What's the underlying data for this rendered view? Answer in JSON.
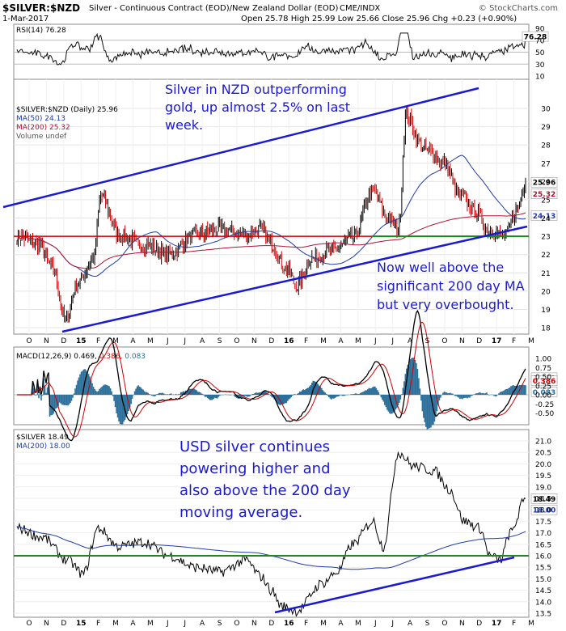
{
  "header": {
    "symbol": "$SILVER:$NZD",
    "description": "Silver - Continuous Contract (EOD)/New Zealand Dollar (EOD)",
    "exchange": "CME/INDX",
    "watermark": "© StockCharts.com",
    "date": "1-Mar-2017",
    "ohlc": "Open 25.78  High 25.99  Low 25.66  Close 25.96  Chg +0.23 (+0.90%)"
  },
  "rsi": {
    "label": "RSI(14) 76.28",
    "ticks": [
      "90",
      "70",
      "50",
      "30",
      "10"
    ],
    "current": "76.28"
  },
  "price": {
    "legend_symbol": "$SILVER:$NZD (Daily) 25.96",
    "legend_ma50": "MA(50) 24.13",
    "legend_ma200": "MA(200) 25.32",
    "legend_volume": "Volume undef",
    "ticks": [
      "30",
      "29",
      "28",
      "27",
      "26",
      "25",
      "24",
      "23",
      "22",
      "21",
      "20",
      "19",
      "18"
    ],
    "last_price": "25.96",
    "ma200_value": "25.32",
    "ma50_value": "24.13",
    "annotation_1": [
      "Silver in NZD outperforming",
      "gold, up almost 2.5% on last",
      "week."
    ],
    "annotation_2": [
      "Now well above the",
      "significant 200 day MA",
      "but very overbought."
    ]
  },
  "macd": {
    "label": "MACD(12,26,9)",
    "v1": "0.469,",
    "v2": "0.386,",
    "v3": "0.083",
    "ticks": [
      "1.00",
      "0.75",
      "0.50",
      "0.25",
      "0.00",
      "-0.25",
      "-0.50"
    ],
    "tag1": "0.469",
    "tag2": "0.386",
    "tag3": "0.083"
  },
  "usd": {
    "legend_symbol": "$SILVER 18.49",
    "legend_ma200": "MA(200) 18.00",
    "ticks": [
      "21.0",
      "20.5",
      "20.0",
      "19.5",
      "19.0",
      "18.5",
      "18.0",
      "17.5",
      "17.0",
      "16.5",
      "16.0",
      "15.5",
      "15.0",
      "14.5",
      "14.0",
      "13.5"
    ],
    "last_price": "18.49",
    "ma200_value": "18.00",
    "annotation": [
      "USD silver continues",
      "powering higher and",
      "also above the 200 day",
      "moving average."
    ]
  },
  "x_axis": [
    "O",
    "N",
    "D",
    "15",
    "F",
    "M",
    "A",
    "M",
    "J",
    "J",
    "A",
    "S",
    "O",
    "N",
    "D",
    "16",
    "F",
    "M",
    "A",
    "M",
    "J",
    "J",
    "A",
    "S",
    "O",
    "N",
    "D",
    "17",
    "F",
    "M"
  ],
  "colors": {
    "price_bar": "#000000",
    "price_bar_down": "#cc0000",
    "ma50": "#1f3ca8",
    "ma200": "#b01030",
    "trendline": "#1a1ad0",
    "support": "#1a8a1a",
    "resistance": "#cc0000",
    "annotation": "#1a1ad0",
    "macd_hist": "#2b6f9a"
  }
}
